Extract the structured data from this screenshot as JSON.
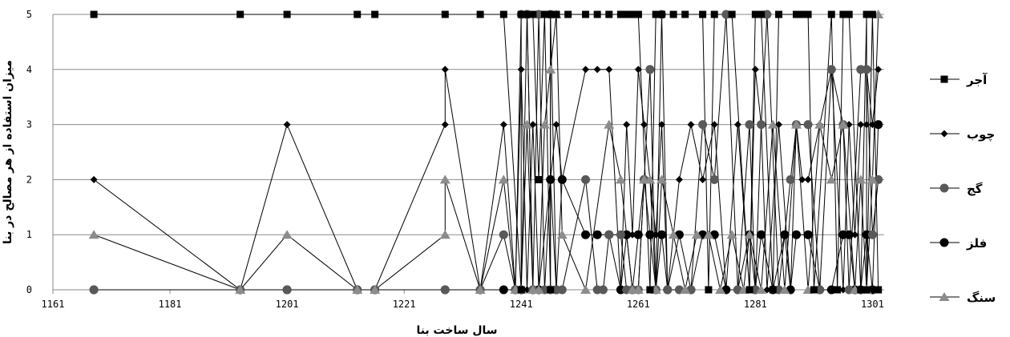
{
  "chart_data": {
    "type": "line",
    "xlabel": "سال ساخت بنا",
    "ylabel": "میزان استفاده از هر مصالح در بنا",
    "xlim": [
      1161,
      1303
    ],
    "ylim": [
      0,
      5
    ],
    "x_ticks": [
      "1161",
      "1181",
      "1201",
      "1221",
      "1241",
      "1261",
      "1281",
      "1301"
    ],
    "y_ticks": [
      "0",
      "1",
      "2",
      "3",
      "4",
      "5"
    ],
    "grid": "horizontal",
    "legend_position": "right",
    "series": [
      {
        "name": "آجر",
        "marker": "square",
        "color": "#000000",
        "x": [
          1168,
          1193,
          1201,
          1213,
          1216,
          1228,
          1234,
          1238,
          1241,
          1241,
          1242,
          1243,
          1244,
          1245,
          1246,
          1246,
          1247,
          1249,
          1252,
          1254,
          1256,
          1258,
          1259,
          1260,
          1261,
          1261,
          1263,
          1264,
          1265,
          1267,
          1269,
          1272,
          1273,
          1274,
          1277,
          1280,
          1281,
          1282,
          1284,
          1285,
          1288,
          1289,
          1290,
          1291,
          1294,
          1295,
          1296,
          1297,
          1299,
          1300,
          1300,
          1301,
          1302
        ],
        "y": [
          5,
          5,
          5,
          5,
          5,
          5,
          5,
          5,
          0,
          5,
          5,
          5,
          2,
          5,
          0,
          5,
          5,
          5,
          5,
          5,
          5,
          5,
          5,
          5,
          5,
          5,
          0,
          5,
          5,
          5,
          5,
          5,
          0,
          5,
          5,
          0,
          5,
          5,
          0,
          5,
          5,
          5,
          5,
          0,
          5,
          0,
          5,
          5,
          0,
          5,
          0,
          5,
          0
        ]
      },
      {
        "name": "چوب",
        "marker": "diamond",
        "color": "#000000",
        "x": [
          1168,
          1193,
          1201,
          1213,
          1216,
          1228,
          1228,
          1234,
          1238,
          1240,
          1241,
          1242,
          1243,
          1244,
          1245,
          1246,
          1247,
          1248,
          1252,
          1254,
          1256,
          1258,
          1259,
          1260,
          1261,
          1262,
          1263,
          1264,
          1265,
          1266,
          1268,
          1270,
          1272,
          1274,
          1276,
          1278,
          1280,
          1281,
          1282,
          1283,
          1285,
          1287,
          1288,
          1289,
          1290,
          1292,
          1294,
          1296,
          1297,
          1298,
          1299,
          1300,
          1300,
          1301,
          1302
        ],
        "y": [
          2,
          0,
          3,
          0,
          0,
          3,
          4,
          0,
          3,
          0,
          4,
          0,
          3,
          0,
          0,
          2,
          3,
          2,
          4,
          4,
          4,
          0,
          3,
          1,
          4,
          3,
          2,
          1,
          3,
          0,
          2,
          3,
          2,
          3,
          0,
          3,
          0,
          4,
          3,
          0,
          3,
          0,
          3,
          2,
          2,
          3,
          4,
          0,
          3,
          1,
          3,
          3,
          4,
          3,
          4
        ]
      },
      {
        "name": "گج",
        "marker": "circle",
        "color": "#595959",
        "x": [
          1168,
          1193,
          1201,
          1213,
          1216,
          1228,
          1234,
          1238,
          1240,
          1241,
          1242,
          1243,
          1244,
          1245,
          1246,
          1246,
          1247,
          1248,
          1252,
          1254,
          1255,
          1256,
          1258,
          1259,
          1260,
          1261,
          1262,
          1263,
          1264,
          1265,
          1266,
          1268,
          1270,
          1272,
          1274,
          1276,
          1278,
          1280,
          1281,
          1282,
          1283,
          1285,
          1287,
          1288,
          1290,
          1292,
          1294,
          1296,
          1297,
          1299,
          1300,
          1301,
          1302
        ],
        "y": [
          0,
          0,
          0,
          0,
          0,
          0,
          0,
          1,
          0,
          5,
          5,
          0,
          5,
          0,
          0,
          5,
          0,
          0,
          2,
          0,
          0,
          1,
          1,
          0,
          0,
          0,
          2,
          4,
          0,
          5,
          0,
          0,
          0,
          3,
          2,
          5,
          0,
          3,
          0,
          3,
          5,
          0,
          2,
          3,
          3,
          0,
          4,
          3,
          0,
          4,
          4,
          1,
          2
        ]
      },
      {
        "name": "فلز",
        "marker": "circle",
        "color": "#000000",
        "x": [
          1168,
          1193,
          1201,
          1213,
          1216,
          1228,
          1234,
          1238,
          1240,
          1241,
          1242,
          1243,
          1244,
          1246,
          1247,
          1248,
          1252,
          1254,
          1256,
          1258,
          1259,
          1260,
          1261,
          1262,
          1263,
          1264,
          1265,
          1266,
          1268,
          1270,
          1272,
          1274,
          1276,
          1278,
          1280,
          1281,
          1282,
          1284,
          1286,
          1287,
          1288,
          1290,
          1292,
          1294,
          1296,
          1297,
          1298,
          1299,
          1300,
          1301,
          1302
        ],
        "y": [
          0,
          0,
          0,
          0,
          0,
          0,
          0,
          0,
          0,
          0,
          5,
          0,
          0,
          2,
          0,
          2,
          1,
          1,
          1,
          0,
          1,
          0,
          1,
          2,
          1,
          0,
          1,
          0,
          1,
          0,
          1,
          1,
          0,
          0,
          1,
          0,
          1,
          0,
          1,
          0,
          1,
          1,
          0,
          0,
          1,
          1,
          0,
          0,
          1,
          0,
          3
        ]
      },
      {
        "name": "سنگ",
        "marker": "triangle",
        "color": "#8c8c8c",
        "x": [
          1168,
          1193,
          1201,
          1213,
          1216,
          1228,
          1228,
          1234,
          1238,
          1240,
          1241,
          1242,
          1243,
          1244,
          1245,
          1246,
          1247,
          1248,
          1252,
          1256,
          1258,
          1260,
          1261,
          1262,
          1263,
          1264,
          1265,
          1267,
          1269,
          1271,
          1273,
          1275,
          1277,
          1279,
          1280,
          1282,
          1284,
          1286,
          1288,
          1290,
          1292,
          1294,
          1296,
          1298,
          1299,
          1300,
          1301,
          1302
        ],
        "y": [
          1,
          0,
          1,
          0,
          0,
          1,
          2,
          0,
          2,
          0,
          0,
          3,
          0,
          0,
          3,
          4,
          5,
          1,
          0,
          3,
          2,
          0,
          0,
          2,
          2,
          0,
          2,
          1,
          0,
          1,
          1,
          0,
          1,
          0,
          1,
          0,
          3,
          0,
          3,
          0,
          3,
          2,
          3,
          0,
          2,
          0,
          2,
          5
        ]
      }
    ]
  }
}
